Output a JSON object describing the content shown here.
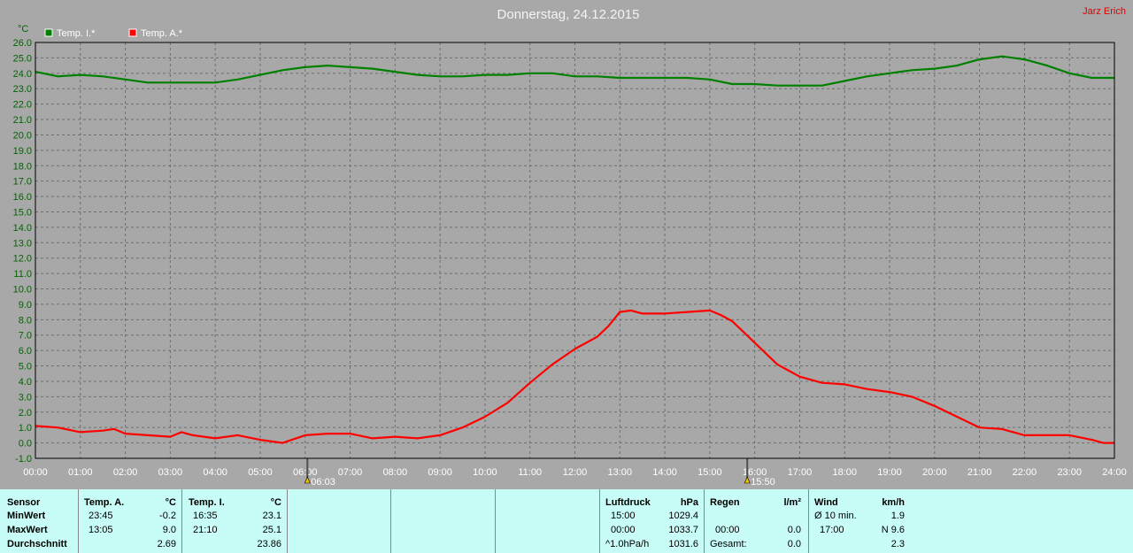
{
  "chart_data": {
    "type": "line",
    "title": "Donnerstag, 24.12.2015",
    "author": "Jarz Erich",
    "y_unit": "°C",
    "ylim": [
      -1.0,
      26.0
    ],
    "y_ticks": [
      "-1.0",
      "0.0",
      "1.0",
      "2.0",
      "3.0",
      "4.0",
      "5.0",
      "6.0",
      "7.0",
      "8.0",
      "9.0",
      "10.0",
      "11.0",
      "12.0",
      "13.0",
      "14.0",
      "15.0",
      "16.0",
      "17.0",
      "18.0",
      "19.0",
      "20.0",
      "21.0",
      "22.0",
      "23.0",
      "24.0",
      "25.0",
      "26.0"
    ],
    "x_ticks": [
      "00:00",
      "01:00",
      "02:00",
      "03:00",
      "04:00",
      "05:00",
      "06:00",
      "07:00",
      "08:00",
      "09:00",
      "10:00",
      "11:00",
      "12:00",
      "13:00",
      "14:00",
      "15:00",
      "16:00",
      "17:00",
      "18:00",
      "19:00",
      "20:00",
      "21:00",
      "22:00",
      "23:00",
      "24:00"
    ],
    "grid": true,
    "legend_position": "top-left",
    "sunrise": "06:03",
    "sunset": "15:50",
    "series": [
      {
        "name": "Temp. I.*",
        "color": "#008000",
        "x": [
          0,
          0.5,
          1,
          1.5,
          2,
          2.5,
          3,
          3.5,
          4,
          4.5,
          5,
          5.5,
          6,
          6.5,
          7,
          7.5,
          8,
          8.5,
          9,
          9.5,
          10,
          10.5,
          11,
          11.5,
          12,
          12.5,
          13,
          13.5,
          14,
          14.5,
          15,
          15.5,
          16,
          16.5,
          17,
          17.5,
          18,
          18.5,
          19,
          19.5,
          20,
          20.5,
          21,
          21.5,
          22,
          22.5,
          23,
          23.5,
          24
        ],
        "y": [
          24.1,
          23.8,
          23.9,
          23.8,
          23.6,
          23.4,
          23.4,
          23.4,
          23.4,
          23.6,
          23.9,
          24.2,
          24.4,
          24.5,
          24.4,
          24.3,
          24.1,
          23.9,
          23.8,
          23.8,
          23.9,
          23.9,
          24.0,
          24.0,
          23.8,
          23.8,
          23.7,
          23.7,
          23.7,
          23.7,
          23.6,
          23.3,
          23.3,
          23.2,
          23.2,
          23.2,
          23.5,
          23.8,
          24.0,
          24.2,
          24.3,
          24.5,
          24.9,
          25.1,
          24.9,
          24.5,
          24.0,
          23.7,
          23.7
        ]
      },
      {
        "name": "Temp. A.*",
        "color": "#ff0000",
        "x": [
          0,
          0.5,
          1,
          1.5,
          1.75,
          2,
          2.5,
          3,
          3.25,
          3.5,
          4,
          4.5,
          5,
          5.5,
          6,
          6.5,
          7,
          7.5,
          8,
          8.5,
          9,
          9.5,
          10,
          10.5,
          11,
          11.5,
          12,
          12.5,
          12.75,
          13,
          13.25,
          13.5,
          14,
          14.5,
          15,
          15.25,
          15.5,
          16,
          16.5,
          17,
          17.5,
          18,
          18.5,
          19,
          19.5,
          20,
          20.5,
          21,
          21.5,
          22,
          22.5,
          23,
          23.5,
          23.75,
          24
        ],
        "y": [
          1.1,
          1.0,
          0.7,
          0.8,
          0.9,
          0.6,
          0.5,
          0.4,
          0.7,
          0.5,
          0.3,
          0.5,
          0.2,
          0.0,
          0.5,
          0.6,
          0.6,
          0.3,
          0.4,
          0.3,
          0.5,
          1.0,
          1.7,
          2.6,
          3.9,
          5.1,
          6.1,
          6.9,
          7.6,
          8.5,
          8.6,
          8.4,
          8.4,
          8.5,
          8.6,
          8.3,
          7.9,
          6.5,
          5.1,
          4.3,
          3.9,
          3.8,
          3.5,
          3.3,
          3.0,
          2.4,
          1.7,
          1.0,
          0.9,
          0.5,
          0.5,
          0.5,
          0.2,
          0.0,
          0.0
        ]
      }
    ]
  },
  "stats": {
    "sensor_label": "Sensor",
    "row_labels": [
      "MinWert",
      "MaxWert",
      "Durchschnitt"
    ],
    "temp_a": {
      "header": "Temp. A.",
      "unit": "°C",
      "min_time": "23:45",
      "min_val": "-0.2",
      "max_time": "13:05",
      "max_val": "9.0",
      "avg_val": "2.69"
    },
    "temp_i": {
      "header": "Temp. I.",
      "unit": "°C",
      "min_time": "16:35",
      "min_val": "23.1",
      "max_time": "21:10",
      "max_val": "25.1",
      "avg_val": "23.86"
    },
    "luftdruck": {
      "header": "Luftdruck",
      "unit": "hPa",
      "min_time": "15:00",
      "min_val": "1029.4",
      "max_time": "00:00",
      "max_val": "1033.7",
      "trend_label": "^1.0hPa/h",
      "trend_val": "1031.6"
    },
    "regen": {
      "header": "Regen",
      "unit": "l/m²",
      "max_time": "00:00",
      "max_val": "0.0",
      "total_label": "Gesamt:",
      "total_val": "0.0"
    },
    "wind": {
      "header": "Wind",
      "unit": "km/h",
      "avg_label": "Ø 10 min.",
      "avg_val": "1.9",
      "max_time": "17:00",
      "max_val": "N 9.6",
      "extra_val": "2.3"
    }
  }
}
